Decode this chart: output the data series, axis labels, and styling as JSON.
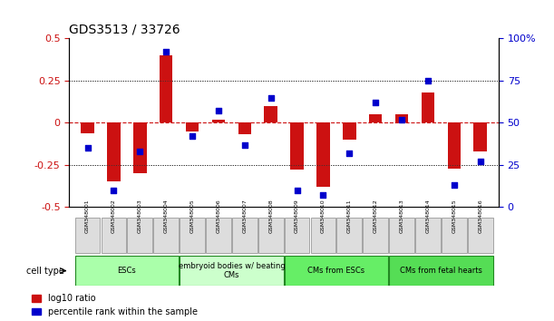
{
  "title": "GDS3513 / 33726",
  "categories": [
    "GSM348001",
    "GSM348002",
    "GSM348003",
    "GSM348004",
    "GSM348005",
    "GSM348006",
    "GSM348007",
    "GSM348008",
    "GSM348009",
    "GSM348010",
    "GSM348011",
    "GSM348012",
    "GSM348013",
    "GSM348014",
    "GSM348015",
    "GSM348016"
  ],
  "log10_ratio": [
    -0.06,
    -0.35,
    -0.3,
    0.4,
    -0.05,
    0.02,
    -0.07,
    0.1,
    -0.28,
    -0.38,
    -0.1,
    0.05,
    0.05,
    0.18,
    -0.27,
    -0.17
  ],
  "percentile_rank": [
    35,
    10,
    33,
    92,
    42,
    57,
    37,
    65,
    10,
    7,
    32,
    62,
    52,
    75,
    13,
    27
  ],
  "ylim_left": [
    -0.5,
    0.5
  ],
  "ylim_right": [
    0,
    100
  ],
  "yticks_left": [
    -0.5,
    -0.25,
    0.0,
    0.25,
    0.5
  ],
  "ytick_labels_left": [
    "-0.5",
    "-0.25",
    "0",
    "0.25",
    "0.5"
  ],
  "yticks_right": [
    0,
    25,
    50,
    75,
    100
  ],
  "ytick_labels_right": [
    "0",
    "25",
    "50",
    "75",
    "100%"
  ],
  "bar_color": "#cc1111",
  "dot_color": "#0000cc",
  "zero_line_color": "#cc1111",
  "dotted_line_color": "#333333",
  "cell_type_groups": [
    {
      "label": "ESCs",
      "start": 0,
      "end": 3,
      "color": "#aaffaa"
    },
    {
      "label": "embryoid bodies w/ beating\nCMs",
      "start": 4,
      "end": 7,
      "color": "#ccffcc"
    },
    {
      "label": "CMs from ESCs",
      "start": 8,
      "end": 11,
      "color": "#66ee66"
    },
    {
      "label": "CMs from fetal hearts",
      "start": 12,
      "end": 15,
      "color": "#55dd55"
    }
  ],
  "legend_bar_label": "log10 ratio",
  "legend_dot_label": "percentile rank within the sample",
  "cell_type_label": "cell type",
  "background_color": "#ffffff",
  "plot_bg_color": "#ffffff"
}
